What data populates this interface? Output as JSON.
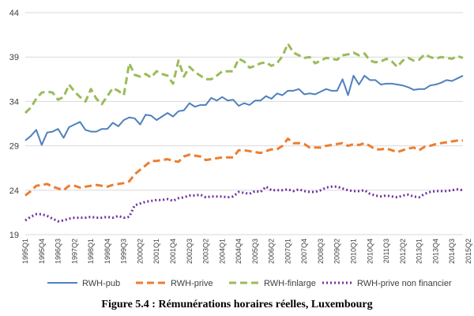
{
  "caption": "Figure 5.4 : Rémunérations horaires réelles, Luxembourg",
  "chart_data": {
    "type": "line",
    "title": "",
    "xlabel": "",
    "ylabel": "",
    "ylim": [
      19,
      44
    ],
    "yticks": [
      19,
      24,
      29,
      34,
      39,
      44
    ],
    "grid": "horizontal",
    "legend": "bottom",
    "xtick_labels": [
      "1995Q1",
      "1995Q4",
      "1996Q3",
      "1997Q2",
      "1998Q1",
      "1998Q4",
      "1999Q3",
      "2000Q2",
      "2001Q1",
      "2001Q4",
      "2002Q3",
      "2003Q2",
      "2004Q1",
      "2004Q4",
      "2005Q3",
      "2006Q2",
      "2007Q1",
      "2007Q4",
      "2008Q3",
      "2009Q2",
      "2010Q1",
      "2010Q4",
      "2011Q3",
      "2012Q2",
      "2013Q1",
      "2013Q4",
      "2014Q3",
      "2015Q2"
    ],
    "series": [
      {
        "name": "RWH-pub",
        "color": "#4f81bd",
        "style": "solid",
        "values": [
          29.6,
          30.1,
          30.8,
          29.1,
          30.5,
          30.6,
          30.9,
          29.9,
          31.1,
          31.4,
          31.7,
          30.8,
          30.6,
          30.6,
          30.9,
          30.9,
          31.6,
          31.2,
          31.9,
          32.2,
          32.1,
          31.4,
          32.5,
          32.4,
          31.9,
          32.3,
          32.7,
          32.3,
          32.9,
          33.0,
          33.8,
          33.4,
          33.6,
          33.6,
          34.4,
          34.1,
          34.5,
          34.1,
          34.2,
          33.5,
          33.8,
          33.6,
          34.1,
          34.1,
          34.6,
          34.3,
          34.9,
          34.7,
          35.2,
          35.2,
          35.4,
          34.8,
          34.9,
          34.8,
          35.1,
          35.4,
          35.2,
          35.2,
          36.5,
          34.7,
          36.9,
          35.9,
          36.9,
          36.4,
          36.4,
          35.9,
          36.0,
          36.0,
          35.9,
          35.8,
          35.6,
          35.3,
          35.4,
          35.4,
          35.8,
          35.9,
          36.1,
          36.4,
          36.3,
          36.6,
          36.9
        ]
      },
      {
        "name": "RWH-prive",
        "color": "#ed7d31",
        "style": "dashed",
        "values": [
          23.4,
          23.9,
          24.5,
          24.6,
          24.7,
          24.4,
          24.2,
          24.0,
          24.5,
          24.5,
          24.3,
          24.4,
          24.5,
          24.6,
          24.5,
          24.4,
          24.6,
          24.7,
          24.8,
          25.0,
          25.8,
          26.3,
          26.8,
          27.3,
          27.3,
          27.4,
          27.5,
          27.3,
          27.2,
          27.8,
          28.0,
          27.9,
          27.8,
          27.4,
          27.5,
          27.6,
          27.7,
          27.7,
          27.7,
          28.5,
          28.5,
          28.4,
          28.3,
          28.2,
          28.4,
          28.6,
          28.6,
          29.0,
          29.8,
          29.3,
          29.3,
          29.2,
          28.8,
          28.8,
          28.8,
          29.0,
          29.1,
          29.2,
          29.3,
          29.0,
          29.2,
          29.1,
          29.3,
          29.0,
          28.6,
          28.6,
          28.7,
          28.5,
          28.3,
          28.5,
          28.7,
          28.8,
          28.5,
          28.9,
          29.0,
          29.2,
          29.3,
          29.4,
          29.5,
          29.6,
          29.6
        ]
      },
      {
        "name": "RWH-finlarge",
        "color": "#9bbb59",
        "style": "dashed",
        "values": [
          32.7,
          33.3,
          34.3,
          35.0,
          35.1,
          35.0,
          34.2,
          34.5,
          35.9,
          35.1,
          34.5,
          34.0,
          35.4,
          34.3,
          33.7,
          34.6,
          35.5,
          35.2,
          34.7,
          38.3,
          37.0,
          36.8,
          37.1,
          36.7,
          37.4,
          37.1,
          36.9,
          36.0,
          38.6,
          36.8,
          37.9,
          37.3,
          36.9,
          36.5,
          36.5,
          36.9,
          37.4,
          37.4,
          37.4,
          38.8,
          38.5,
          37.8,
          38.0,
          38.3,
          38.4,
          38.0,
          38.3,
          39.1,
          40.5,
          39.5,
          39.2,
          38.9,
          39.0,
          38.3,
          38.6,
          38.9,
          38.8,
          38.7,
          39.2,
          39.3,
          39.5,
          39.2,
          39.4,
          38.6,
          38.4,
          38.5,
          38.8,
          38.5,
          37.9,
          38.6,
          38.9,
          38.6,
          38.7,
          39.3,
          39.0,
          38.8,
          39.0,
          38.9,
          38.8,
          39.1,
          38.9
        ]
      },
      {
        "name": "RWH-prive non financier",
        "color": "#7030a0",
        "style": "dotted",
        "values": [
          20.6,
          21.0,
          21.3,
          21.3,
          21.1,
          20.8,
          20.5,
          20.6,
          20.8,
          20.9,
          20.9,
          20.9,
          21.0,
          20.9,
          20.9,
          21.0,
          20.9,
          21.1,
          20.9,
          21.0,
          22.3,
          22.5,
          22.7,
          22.8,
          22.9,
          22.9,
          23.0,
          22.8,
          23.1,
          23.2,
          23.4,
          23.4,
          23.5,
          23.2,
          23.3,
          23.3,
          23.3,
          23.2,
          23.3,
          23.8,
          23.7,
          23.6,
          23.9,
          23.8,
          24.4,
          24.0,
          24.0,
          24.0,
          24.1,
          23.9,
          24.1,
          23.9,
          23.8,
          23.8,
          24.0,
          24.3,
          24.4,
          24.4,
          24.2,
          24.0,
          23.9,
          23.9,
          24.0,
          23.6,
          23.4,
          23.3,
          23.4,
          23.3,
          23.2,
          23.4,
          23.5,
          23.3,
          23.2,
          23.6,
          23.8,
          23.9,
          23.9,
          23.9,
          24.0,
          24.1,
          24.0
        ]
      }
    ]
  }
}
